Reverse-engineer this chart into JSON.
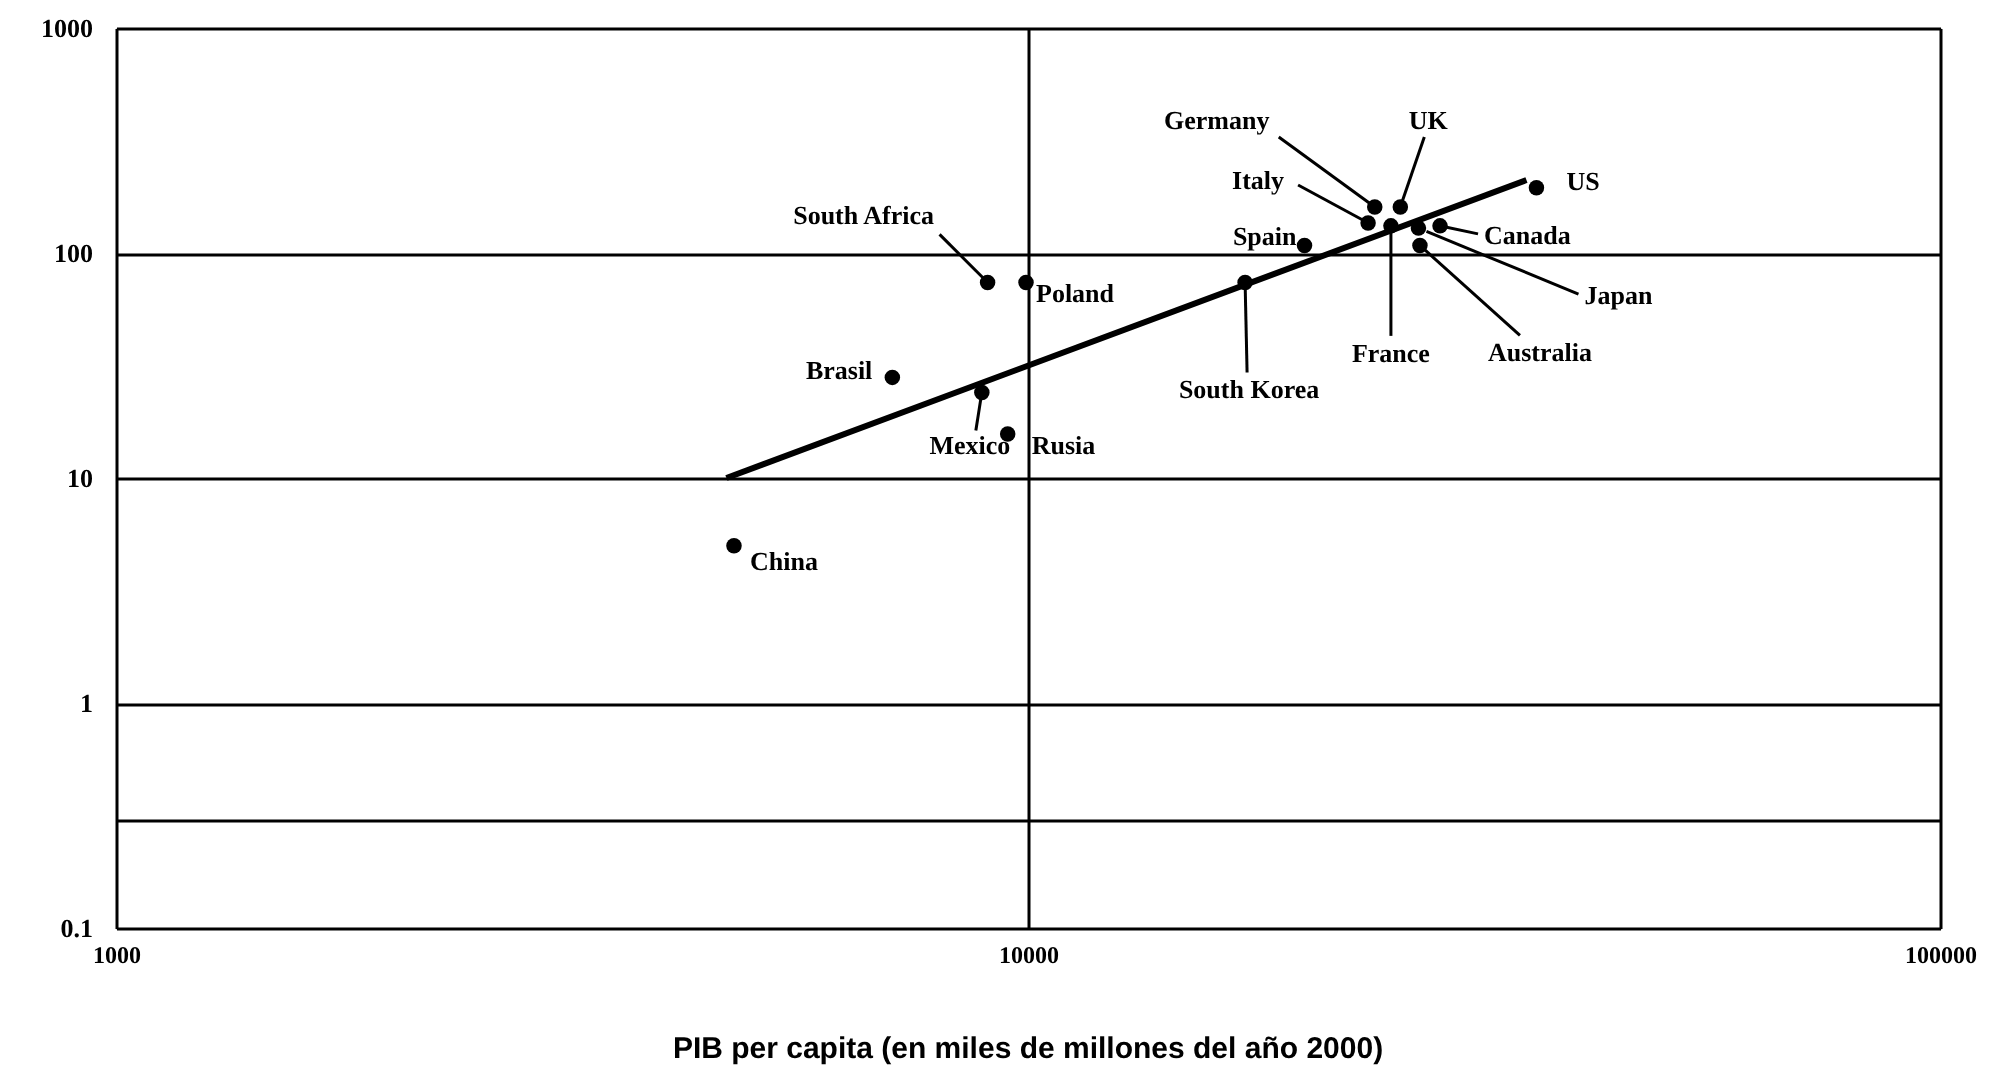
{
  "chart_data": {
    "type": "scatter",
    "xlabel": "PIB per capita (en miles de millones del año 2000)",
    "log": "xy",
    "grid": true,
    "xlim": [
      1000,
      100000
    ],
    "xticks": [
      1000,
      10000,
      100000
    ],
    "ylim": [
      0.1,
      1000
    ],
    "yticks": [
      0.1,
      {
        "value": 0.3,
        "label": null
      },
      1,
      10,
      100,
      1000
    ],
    "series": [
      {
        "color": "#000000",
        "marker": "circle",
        "x": [
          4760,
          7100,
          9030,
          8900,
          9950,
          9500,
          17300,
          20100,
          24000,
          25600,
          23600,
          25000,
          28300,
          26800,
          26900,
          36100
        ],
        "values": [
          5.0,
          28,
          74,
          24,
          74,
          15.7,
          74,
          108,
          160,
          160,
          136,
          132,
          132,
          129,
          108,
          195
        ]
      },
      {
        "type": "line",
        "color": "#000000",
        "x": [
          4670,
          35200
        ],
        "values": [
          10,
          211
        ]
      }
    ],
    "annotations": [
      {
        "text": "China",
        "x": 4760,
        "y": 5.0
      },
      {
        "text": "Brasil",
        "x": 7100,
        "y": 28
      },
      {
        "text": "South Africa",
        "x": 9030,
        "y": 74
      },
      {
        "text": "Mexico",
        "x": 8900,
        "y": 24
      },
      {
        "text": "Poland",
        "x": 9950,
        "y": 74
      },
      {
        "text": "Rusia",
        "x": 9500,
        "y": 15.7
      },
      {
        "text": "South Korea",
        "x": 17300,
        "y": 74
      },
      {
        "text": "Spain",
        "x": 20100,
        "y": 108
      },
      {
        "text": "Germany",
        "x": 24000,
        "y": 160
      },
      {
        "text": "UK",
        "x": 25600,
        "y": 160
      },
      {
        "text": "Italy",
        "x": 23600,
        "y": 136
      },
      {
        "text": "France",
        "x": 25000,
        "y": 132
      },
      {
        "text": "Canada",
        "x": 28300,
        "y": 132
      },
      {
        "text": "Japan",
        "x": 26800,
        "y": 129
      },
      {
        "text": "Australia",
        "x": 26900,
        "y": 108
      },
      {
        "text": "US",
        "x": 36100,
        "y": 195
      }
    ]
  }
}
